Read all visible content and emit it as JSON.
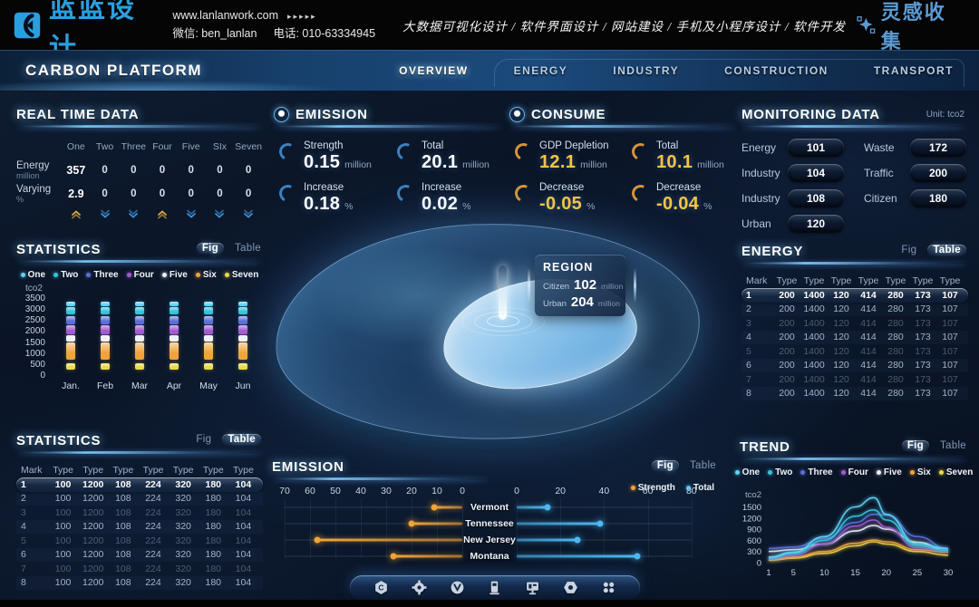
{
  "banner": {
    "logo_text": "蓝蓝设计",
    "website": "www.lanlanwork.com",
    "website_arrows": "▸▸▸▸▸",
    "wechat": "微信: ben_lanlan",
    "phone": "电话: 010-63334945",
    "services": "大数据可视化设计 / 软件界面设计 / 网站建设 / 手机及小程序设计 / 软件开发",
    "collect_label": "灵感收集"
  },
  "nav": {
    "title": "CARBON PLATFORM",
    "tabs": [
      {
        "label": "OVERVIEW",
        "active": true
      },
      {
        "label": "ENERGY",
        "active": false
      },
      {
        "label": "INDUSTRY",
        "active": false
      },
      {
        "label": "CONSTRUCTION",
        "active": false
      },
      {
        "label": "TRANSPORT",
        "active": false
      }
    ]
  },
  "toggles": {
    "fig": "Fig",
    "table": "Table"
  },
  "series_legend": [
    {
      "label": "One",
      "color": "#5fd4f7"
    },
    {
      "label": "Two",
      "color": "#36c3da"
    },
    {
      "label": "Three",
      "color": "#5a6fd8"
    },
    {
      "label": "Four",
      "color": "#a35ad0"
    },
    {
      "label": "Five",
      "color": "#eef2f7"
    },
    {
      "label": "Six",
      "color": "#f0a33a"
    },
    {
      "label": "Seven",
      "color": "#e9d84a"
    }
  ],
  "realtime": {
    "title": "REAL TIME DATA",
    "columns": [
      "One",
      "Two",
      "Three",
      "Four",
      "Five",
      "SIx",
      "Seven"
    ],
    "rows": [
      {
        "label": "Energy",
        "unit": "million",
        "values": [
          "357",
          "0",
          "0",
          "0",
          "0",
          "0",
          "0"
        ]
      },
      {
        "label": "Varying",
        "unit": "%",
        "values": [
          "2.9",
          "0",
          "0",
          "0",
          "0",
          "0",
          "0"
        ]
      }
    ],
    "trends": [
      "up",
      "down",
      "down",
      "up",
      "down",
      "down",
      "down"
    ]
  },
  "emission_stats": {
    "title": "EMISSION",
    "accent": "#3f87c9",
    "value_color": "#ffffff",
    "stats": [
      {
        "label": "Strength",
        "value": "0.15",
        "unit": "million"
      },
      {
        "label": "Total",
        "value": "20.1",
        "unit": "million"
      },
      {
        "label": "Increase",
        "value": "0.18",
        "unit": "%"
      },
      {
        "label": "Increase",
        "value": "0.02",
        "unit": "%"
      }
    ]
  },
  "consume_stats": {
    "title": "CONSUME",
    "accent": "#e09a3c",
    "value_color": "#f6c445",
    "stats": [
      {
        "label": "GDP Depletion",
        "value": "12.1",
        "unit": "million"
      },
      {
        "label": "Total",
        "value": "10.1",
        "unit": "million"
      },
      {
        "label": "Decrease",
        "value": "-0.05",
        "unit": "%"
      },
      {
        "label": "Decrease",
        "value": "-0.04",
        "unit": "%"
      }
    ]
  },
  "monitoring": {
    "title": "MONITORING DATA",
    "unit_note": "Unit: tco2",
    "left": [
      {
        "label": "Energy",
        "value": "101"
      },
      {
        "label": "Industry",
        "value": "104"
      },
      {
        "label": "Industry",
        "value": "108"
      },
      {
        "label": "Urban",
        "value": "120"
      }
    ],
    "right": [
      {
        "label": "Waste",
        "value": "172"
      },
      {
        "label": "Traffic",
        "value": "200"
      },
      {
        "label": "Citizen",
        "value": "180"
      }
    ]
  },
  "region_card": {
    "title": "REGION",
    "rows": [
      {
        "label": "Citizen",
        "value": "102",
        "unit": "million"
      },
      {
        "label": "Urban",
        "value": "204",
        "unit": "million"
      }
    ]
  },
  "statistics_fig": {
    "title": "STATISTICS",
    "active_toggle": "fig",
    "chart": {
      "type": "bar-stacked",
      "ylabel": "tco2",
      "yticks": [
        0,
        500,
        1000,
        1500,
        2000,
        2500,
        3000,
        3500
      ],
      "ylim": [
        0,
        3500
      ],
      "categories": [
        "Jan.",
        "Feb",
        "Mar",
        "Apr",
        "May",
        "Jun"
      ],
      "stack_segments": [
        {
          "series": "Seven",
          "color": "#e9d84a",
          "from": 250,
          "to": 550
        },
        {
          "series": "Six",
          "color": "#f0a33a",
          "from": 700,
          "to": 1500
        },
        {
          "series": "Five",
          "color": "#eef2f7",
          "from": 1540,
          "to": 1800
        },
        {
          "series": "Four",
          "color": "#a35ad0",
          "from": 1870,
          "to": 2250
        },
        {
          "series": "Three",
          "color": "#5a6fd8",
          "from": 2320,
          "to": 2680
        },
        {
          "series": "Two",
          "color": "#36c3da",
          "from": 2750,
          "to": 3080
        },
        {
          "series": "One",
          "color": "#5fd4f7",
          "from": 3130,
          "to": 3330
        }
      ]
    }
  },
  "statistics_table": {
    "title": "STATISTICS",
    "active_toggle": "table",
    "headers": [
      "Mark",
      "Type",
      "Type",
      "Type",
      "Type",
      "Type",
      "Type",
      "Type"
    ],
    "rows": [
      [
        "1",
        "100",
        "1200",
        "108",
        "224",
        "320",
        "180",
        "104"
      ],
      [
        "2",
        "100",
        "1200",
        "108",
        "224",
        "320",
        "180",
        "104"
      ],
      [
        "3",
        "100",
        "1200",
        "108",
        "224",
        "320",
        "180",
        "104"
      ],
      [
        "4",
        "100",
        "1200",
        "108",
        "224",
        "320",
        "180",
        "104"
      ],
      [
        "5",
        "100",
        "1200",
        "108",
        "224",
        "320",
        "180",
        "104"
      ],
      [
        "6",
        "100",
        "1200",
        "108",
        "224",
        "320",
        "180",
        "104"
      ],
      [
        "7",
        "100",
        "1200",
        "108",
        "224",
        "320",
        "180",
        "104"
      ],
      [
        "8",
        "100",
        "1200",
        "108",
        "224",
        "320",
        "180",
        "104"
      ]
    ]
  },
  "energy_table": {
    "title": "ENERGY",
    "active_toggle": "table",
    "headers": [
      "Mark",
      "Type",
      "Type",
      "Type",
      "Type",
      "Type",
      "Type",
      "Type"
    ],
    "rows": [
      [
        "1",
        "200",
        "1400",
        "120",
        "414",
        "280",
        "173",
        "107"
      ],
      [
        "2",
        "200",
        "1400",
        "120",
        "414",
        "280",
        "173",
        "107"
      ],
      [
        "3",
        "200",
        "1400",
        "120",
        "414",
        "280",
        "173",
        "107"
      ],
      [
        "4",
        "200",
        "1400",
        "120",
        "414",
        "280",
        "173",
        "107"
      ],
      [
        "5",
        "200",
        "1400",
        "120",
        "414",
        "280",
        "173",
        "107"
      ],
      [
        "6",
        "200",
        "1400",
        "120",
        "414",
        "280",
        "173",
        "107"
      ],
      [
        "7",
        "200",
        "1400",
        "120",
        "414",
        "280",
        "173",
        "107"
      ],
      [
        "8",
        "200",
        "1400",
        "120",
        "414",
        "280",
        "173",
        "107"
      ]
    ]
  },
  "emission_chart": {
    "title": "EMISSION",
    "active_toggle": "fig",
    "legend": [
      {
        "label": "Strength",
        "color": "#f0a33a"
      },
      {
        "label": "Total",
        "color": "#4db8f0"
      }
    ],
    "chart": {
      "type": "bar-horizontal-dual",
      "categories": [
        "Vermont",
        "Tennessee",
        "New Jersey",
        "Montana"
      ],
      "series": [
        {
          "name": "Strength",
          "color": "#f0a33a",
          "values": [
            11,
            20,
            57,
            27
          ]
        },
        {
          "name": "Total",
          "color": "#4db8f0",
          "values": [
            14,
            38,
            28,
            55
          ]
        }
      ],
      "left_ticks": [
        70,
        60,
        50,
        40,
        30,
        20,
        10,
        0
      ],
      "right_ticks": [
        0,
        20,
        40,
        60,
        80
      ]
    }
  },
  "trend": {
    "title": "TREND",
    "active_toggle": "fig",
    "chart": {
      "type": "line",
      "ylabel": "tco2",
      "yticks": [
        0,
        300,
        600,
        900,
        1200,
        1500
      ],
      "xticks": [
        1,
        5,
        10,
        15,
        20,
        25,
        30
      ],
      "x": [
        1,
        5,
        10,
        15,
        18,
        20,
        25,
        30
      ],
      "series": [
        {
          "name": "One",
          "color": "#5fd4f7",
          "values": [
            150,
            280,
            700,
            1500,
            1750,
            1300,
            500,
            380
          ]
        },
        {
          "name": "Two",
          "color": "#36c3da",
          "values": [
            120,
            250,
            600,
            1250,
            1420,
            1150,
            450,
            330
          ]
        },
        {
          "name": "Three",
          "color": "#5a6fd8",
          "values": [
            380,
            420,
            650,
            1080,
            1300,
            1280,
            700,
            380
          ]
        },
        {
          "name": "Four",
          "color": "#a35ad0",
          "values": [
            100,
            200,
            500,
            980,
            1150,
            950,
            400,
            300
          ]
        },
        {
          "name": "Five",
          "color": "#eef2f7",
          "values": [
            300,
            350,
            500,
            850,
            1000,
            900,
            550,
            320
          ]
        },
        {
          "name": "Six",
          "color": "#f0a33a",
          "values": [
            80,
            150,
            300,
            520,
            610,
            560,
            350,
            280
          ]
        },
        {
          "name": "Seven",
          "color": "#e9d84a",
          "values": [
            60,
            120,
            250,
            450,
            560,
            500,
            300,
            200
          ]
        }
      ]
    }
  },
  "bottom_bar": {
    "icons": [
      "home-hexagon-icon",
      "gear-icon",
      "circle-v-icon",
      "charging-pile-icon",
      "monitor-icon",
      "nut-icon",
      "apps-grid-icon"
    ]
  }
}
